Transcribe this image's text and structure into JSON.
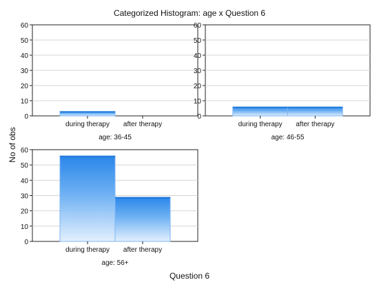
{
  "chart_data": {
    "type": "bar",
    "title": "Categorized Histogram: age x Question 6",
    "xlabel": "Question 6",
    "ylabel": "No of obs",
    "categories": [
      "during therapy",
      "after therapy"
    ],
    "ylim": [
      0,
      60
    ],
    "yticks": [
      0,
      10,
      20,
      30,
      40,
      50,
      60
    ],
    "grid": true,
    "panels": [
      {
        "label": "age: 36-45",
        "values": [
          3,
          0
        ]
      },
      {
        "label": "age: 46-55",
        "values": [
          6,
          6
        ]
      },
      {
        "label": "age: 56+",
        "values": [
          56,
          29
        ]
      }
    ]
  }
}
